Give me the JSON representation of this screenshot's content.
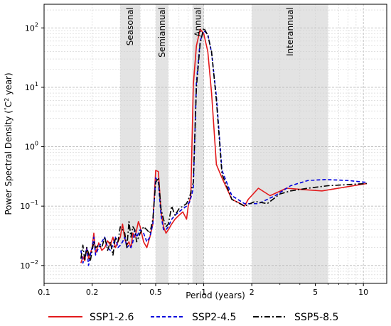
{
  "chart_data": {
    "type": "line",
    "xlabel": "Period (years)",
    "ylabel_prefix": "Power Spectral Density (",
    "ylabel_deg": "°",
    "ylabel_c": "C",
    "ylabel_sup": "2",
    "ylabel_suffix": " year)",
    "xscale": "log",
    "yscale": "log",
    "xlim": [
      0.1,
      14
    ],
    "ylim": [
      0.005,
      250
    ],
    "grid": true,
    "legend_position": "bottom",
    "x_ticks": [
      0.1,
      0.2,
      0.5,
      1,
      2,
      5,
      10
    ],
    "x_tick_labels": [
      "0.1",
      "0.2",
      "0.5",
      "1",
      "2",
      "5",
      "10"
    ],
    "y_ticks": [
      0.01,
      0.1,
      1,
      10,
      100
    ],
    "y_tick_labels": [
      {
        "base": "10",
        "exp": "−2"
      },
      {
        "base": "10",
        "exp": "−1"
      },
      {
        "base": "10",
        "exp": "0"
      },
      {
        "base": "10",
        "exp": "1"
      },
      {
        "base": "10",
        "exp": "2"
      }
    ],
    "bands": [
      {
        "label": "Seasonal",
        "range": [
          0.3,
          0.4
        ]
      },
      {
        "label": "Semiannual",
        "range": [
          0.5,
          0.6
        ]
      },
      {
        "label": "Annual",
        "range": [
          0.85,
          1.0
        ]
      },
      {
        "label": "Interannual",
        "range": [
          2.0,
          6.0
        ]
      }
    ],
    "series": [
      {
        "name": "SSP1-2.6",
        "color": "#e31a1c",
        "dash": "solid",
        "x": [
          0.17,
          0.175,
          0.18,
          0.185,
          0.19,
          0.195,
          0.2,
          0.205,
          0.21,
          0.22,
          0.23,
          0.24,
          0.25,
          0.26,
          0.27,
          0.28,
          0.29,
          0.3,
          0.31,
          0.32,
          0.33,
          0.34,
          0.35,
          0.36,
          0.37,
          0.38,
          0.39,
          0.4,
          0.42,
          0.44,
          0.46,
          0.48,
          0.5,
          0.52,
          0.54,
          0.56,
          0.58,
          0.6,
          0.63,
          0.66,
          0.7,
          0.74,
          0.78,
          0.8,
          0.83,
          0.86,
          0.9,
          0.95,
          1.0,
          1.06,
          1.12,
          1.2,
          1.3,
          1.5,
          1.7,
          1.8,
          1.9,
          2.2,
          2.6,
          3.3,
          4.2,
          5.5,
          10.5
        ],
        "y": [
          0.011,
          0.014,
          0.012,
          0.02,
          0.013,
          0.016,
          0.02,
          0.035,
          0.016,
          0.024,
          0.018,
          0.02,
          0.026,
          0.022,
          0.03,
          0.02,
          0.025,
          0.03,
          0.05,
          0.028,
          0.022,
          0.025,
          0.02,
          0.035,
          0.03,
          0.04,
          0.055,
          0.045,
          0.025,
          0.02,
          0.03,
          0.05,
          0.4,
          0.38,
          0.08,
          0.045,
          0.035,
          0.04,
          0.05,
          0.06,
          0.07,
          0.08,
          0.06,
          0.1,
          0.15,
          11,
          50,
          95,
          80,
          40,
          8,
          0.5,
          0.3,
          0.13,
          0.11,
          0.1,
          0.13,
          0.2,
          0.15,
          0.2,
          0.19,
          0.18,
          0.24
        ]
      },
      {
        "name": "SSP2-4.5",
        "color": "#0000dd",
        "dash": "5,3",
        "x": [
          0.17,
          0.175,
          0.18,
          0.185,
          0.19,
          0.195,
          0.2,
          0.205,
          0.21,
          0.22,
          0.23,
          0.24,
          0.25,
          0.26,
          0.27,
          0.28,
          0.29,
          0.3,
          0.31,
          0.32,
          0.33,
          0.34,
          0.35,
          0.36,
          0.37,
          0.38,
          0.4,
          0.42,
          0.44,
          0.46,
          0.48,
          0.5,
          0.52,
          0.54,
          0.56,
          0.58,
          0.6,
          0.63,
          0.66,
          0.7,
          0.74,
          0.78,
          0.82,
          0.86,
          0.9,
          0.95,
          1.0,
          1.06,
          1.12,
          1.2,
          1.3,
          1.5,
          1.8,
          2.2,
          2.8,
          3.5,
          4.5,
          5.8,
          8,
          10.5
        ],
        "y": [
          0.018,
          0.011,
          0.014,
          0.02,
          0.01,
          0.015,
          0.02,
          0.03,
          0.015,
          0.02,
          0.025,
          0.03,
          0.02,
          0.018,
          0.022,
          0.03,
          0.02,
          0.022,
          0.025,
          0.03,
          0.02,
          0.022,
          0.02,
          0.025,
          0.04,
          0.03,
          0.04,
          0.035,
          0.025,
          0.03,
          0.05,
          0.3,
          0.25,
          0.07,
          0.04,
          0.04,
          0.045,
          0.06,
          0.07,
          0.08,
          0.09,
          0.1,
          0.12,
          0.2,
          12,
          60,
          90,
          78,
          38,
          7,
          0.4,
          0.15,
          0.11,
          0.11,
          0.15,
          0.22,
          0.27,
          0.28,
          0.27,
          0.25
        ]
      },
      {
        "name": "SSP5-8.5",
        "color": "#000000",
        "dash": "8,3,2,3",
        "x": [
          0.17,
          0.175,
          0.18,
          0.185,
          0.19,
          0.195,
          0.2,
          0.205,
          0.21,
          0.22,
          0.23,
          0.24,
          0.25,
          0.26,
          0.27,
          0.28,
          0.29,
          0.3,
          0.31,
          0.32,
          0.33,
          0.34,
          0.35,
          0.36,
          0.37,
          0.38,
          0.4,
          0.42,
          0.44,
          0.46,
          0.48,
          0.5,
          0.52,
          0.54,
          0.56,
          0.58,
          0.6,
          0.63,
          0.66,
          0.7,
          0.74,
          0.78,
          0.82,
          0.86,
          0.9,
          0.95,
          1.0,
          1.06,
          1.12,
          1.2,
          1.3,
          1.5,
          1.8,
          2.1,
          2.5,
          3.0,
          3.5,
          4.5,
          6.0,
          10.5
        ],
        "y": [
          0.013,
          0.022,
          0.012,
          0.02,
          0.016,
          0.012,
          0.018,
          0.025,
          0.02,
          0.022,
          0.02,
          0.03,
          0.018,
          0.025,
          0.015,
          0.03,
          0.025,
          0.045,
          0.04,
          0.035,
          0.02,
          0.055,
          0.03,
          0.045,
          0.04,
          0.025,
          0.035,
          0.045,
          0.04,
          0.035,
          0.06,
          0.25,
          0.3,
          0.09,
          0.06,
          0.045,
          0.05,
          0.1,
          0.07,
          0.09,
          0.1,
          0.11,
          0.15,
          0.25,
          10,
          55,
          100,
          75,
          40,
          6,
          0.35,
          0.13,
          0.1,
          0.12,
          0.11,
          0.16,
          0.18,
          0.2,
          0.22,
          0.24
        ]
      }
    ]
  }
}
